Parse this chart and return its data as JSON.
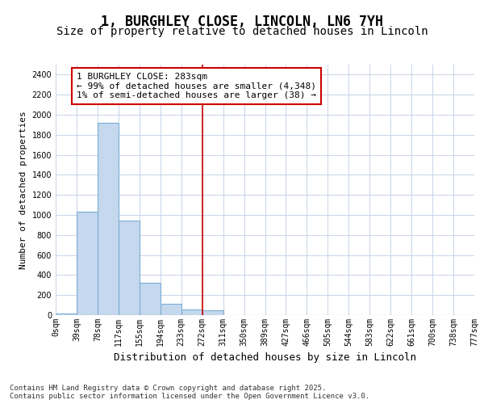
{
  "title": "1, BURGHLEY CLOSE, LINCOLN, LN6 7YH",
  "subtitle": "Size of property relative to detached houses in Lincoln",
  "xlabel": "Distribution of detached houses by size in Lincoln",
  "ylabel": "Number of detached properties",
  "bin_labels": [
    "0sqm",
    "39sqm",
    "78sqm",
    "117sqm",
    "155sqm",
    "194sqm",
    "233sqm",
    "272sqm",
    "311sqm",
    "350sqm",
    "389sqm",
    "427sqm",
    "466sqm",
    "505sqm",
    "544sqm",
    "583sqm",
    "622sqm",
    "661sqm",
    "700sqm",
    "738sqm",
    "777sqm"
  ],
  "bar_values": [
    20,
    1030,
    1920,
    940,
    320,
    110,
    60,
    50,
    0,
    0,
    0,
    0,
    0,
    0,
    0,
    0,
    0,
    0,
    0,
    0
  ],
  "bar_color": "#c5d8ed",
  "bar_edge_color": "#7aaed6",
  "subject_line_bin": 7,
  "subject_value": 283,
  "annotation_text": "1 BURGHLEY CLOSE: 283sqm\n← 99% of detached houses are smaller (4,348)\n1% of semi-detached houses are larger (38) →",
  "annotation_box_color": "#ffffff",
  "annotation_box_edge_color": "#cc0000",
  "vline_color": "#cc0000",
  "ylim": [
    0,
    2500
  ],
  "yticks": [
    0,
    200,
    400,
    600,
    800,
    1000,
    1200,
    1400,
    1600,
    1800,
    2000,
    2200,
    2400
  ],
  "bg_color": "#ffffff",
  "plot_bg_color": "#ffffff",
  "grid_color": "#c8d4e8",
  "footer_text": "Contains HM Land Registry data © Crown copyright and database right 2025.\nContains public sector information licensed under the Open Government Licence v3.0.",
  "title_fontsize": 12,
  "subtitle_fontsize": 10,
  "xlabel_fontsize": 9,
  "ylabel_fontsize": 8,
  "tick_fontsize": 7,
  "annotation_fontsize": 8,
  "footer_fontsize": 6.5
}
